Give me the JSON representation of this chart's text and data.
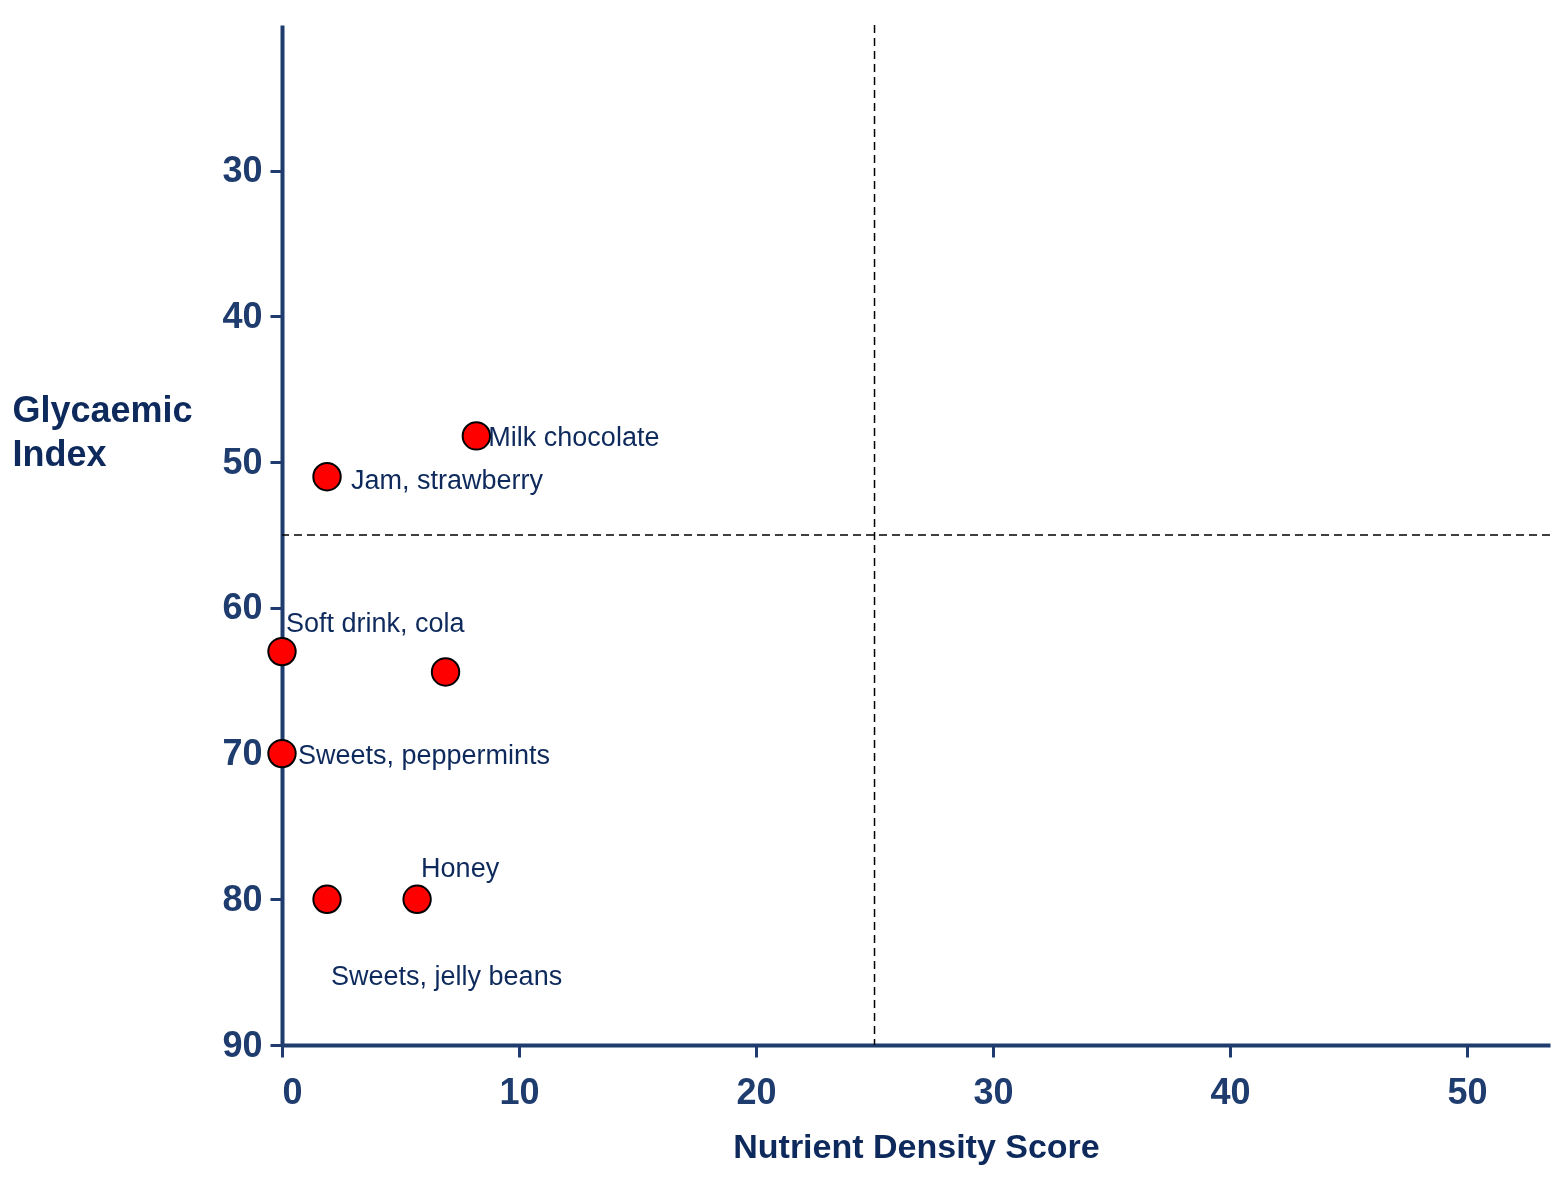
{
  "chart_data": {
    "type": "scatter",
    "xlabel": "Nutrient Density Score",
    "ylabel": "Glycaemic Index",
    "x": [
      8.2,
      1.9,
      0,
      6.9,
      0,
      1.9,
      5.7
    ],
    "series": [
      {
        "color": "#ff0000",
        "values": [
          48.2,
          51,
          63,
          64.4,
          70,
          80,
          80
        ]
      }
    ],
    "annotations": [
      {
        "text": "Milk chocolate",
        "x": 8.2,
        "y": 48.2
      },
      {
        "text": "Jam, strawberry",
        "x": 1.9,
        "y": 51
      },
      {
        "text": "Soft drink, cola",
        "x": 0,
        "y": 63
      },
      {
        "text": "Sweets, peppermints",
        "x": 0,
        "y": 70
      },
      {
        "text": "Sweets, jelly beans",
        "x": 1.9,
        "y": 80
      },
      {
        "text": "Honey",
        "x": 5.7,
        "y": 80
      }
    ],
    "xlim": [
      0,
      53.5
    ],
    "xticks": [
      0,
      10,
      20,
      30,
      40,
      50
    ],
    "ylim": [
      90,
      20
    ],
    "yticks": [
      30,
      40,
      50,
      60,
      70,
      80,
      90
    ],
    "ref_lines": [
      {
        "axis": "x",
        "value": 25,
        "line_style": "dashed",
        "color": "#000000"
      },
      {
        "axis": "y",
        "value": 55,
        "line_style": "dashed",
        "color": "#000000"
      }
    ],
    "grid": false,
    "marker": "circle"
  }
}
